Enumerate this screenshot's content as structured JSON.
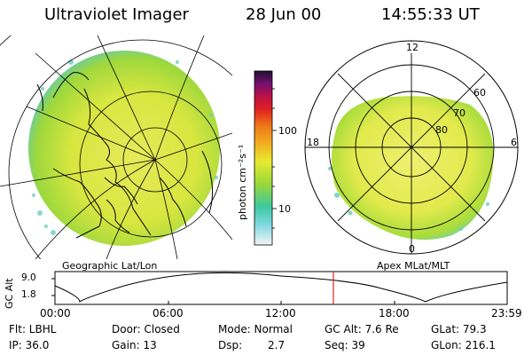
{
  "header": {
    "instrument": "Ultraviolet Imager",
    "date": "28 Jun 00",
    "time": "14:55:33 UT"
  },
  "left_panel": {
    "caption": "Geographic Lat/Lon"
  },
  "right_panel": {
    "caption": "Apex MLat/MLT",
    "mlt_labels": {
      "top": "12",
      "bottom": "0",
      "left": "18",
      "right": "6"
    },
    "lat_labels": [
      "60",
      "70",
      "80"
    ]
  },
  "colorbar": {
    "unit_label": "photon cm⁻²s⁻¹",
    "ticks": [
      "100",
      "10"
    ],
    "scale": "log"
  },
  "timeline": {
    "ylabel": "GC Alt",
    "y_ticks": [
      "9.0",
      "1.8"
    ],
    "x_ticks": [
      "00:00",
      "06:00",
      "12:00",
      "18:00",
      "23:59"
    ],
    "current_time_color": "#e02020"
  },
  "info": {
    "row1": {
      "flt": "Flt: LBHL",
      "door": "Door: Closed",
      "mode": "Mode: Normal",
      "gcalt": "GC Alt: 7.6 Re",
      "glat": "GLat:  79.3"
    },
    "row2": {
      "ip": "IP: 36.0",
      "gain": "Gain: 13",
      "dsp_label": "Dsp:",
      "dsp_value": "2.7",
      "seq": "Seq: 39",
      "glon": "GLon: 216.1"
    }
  }
}
